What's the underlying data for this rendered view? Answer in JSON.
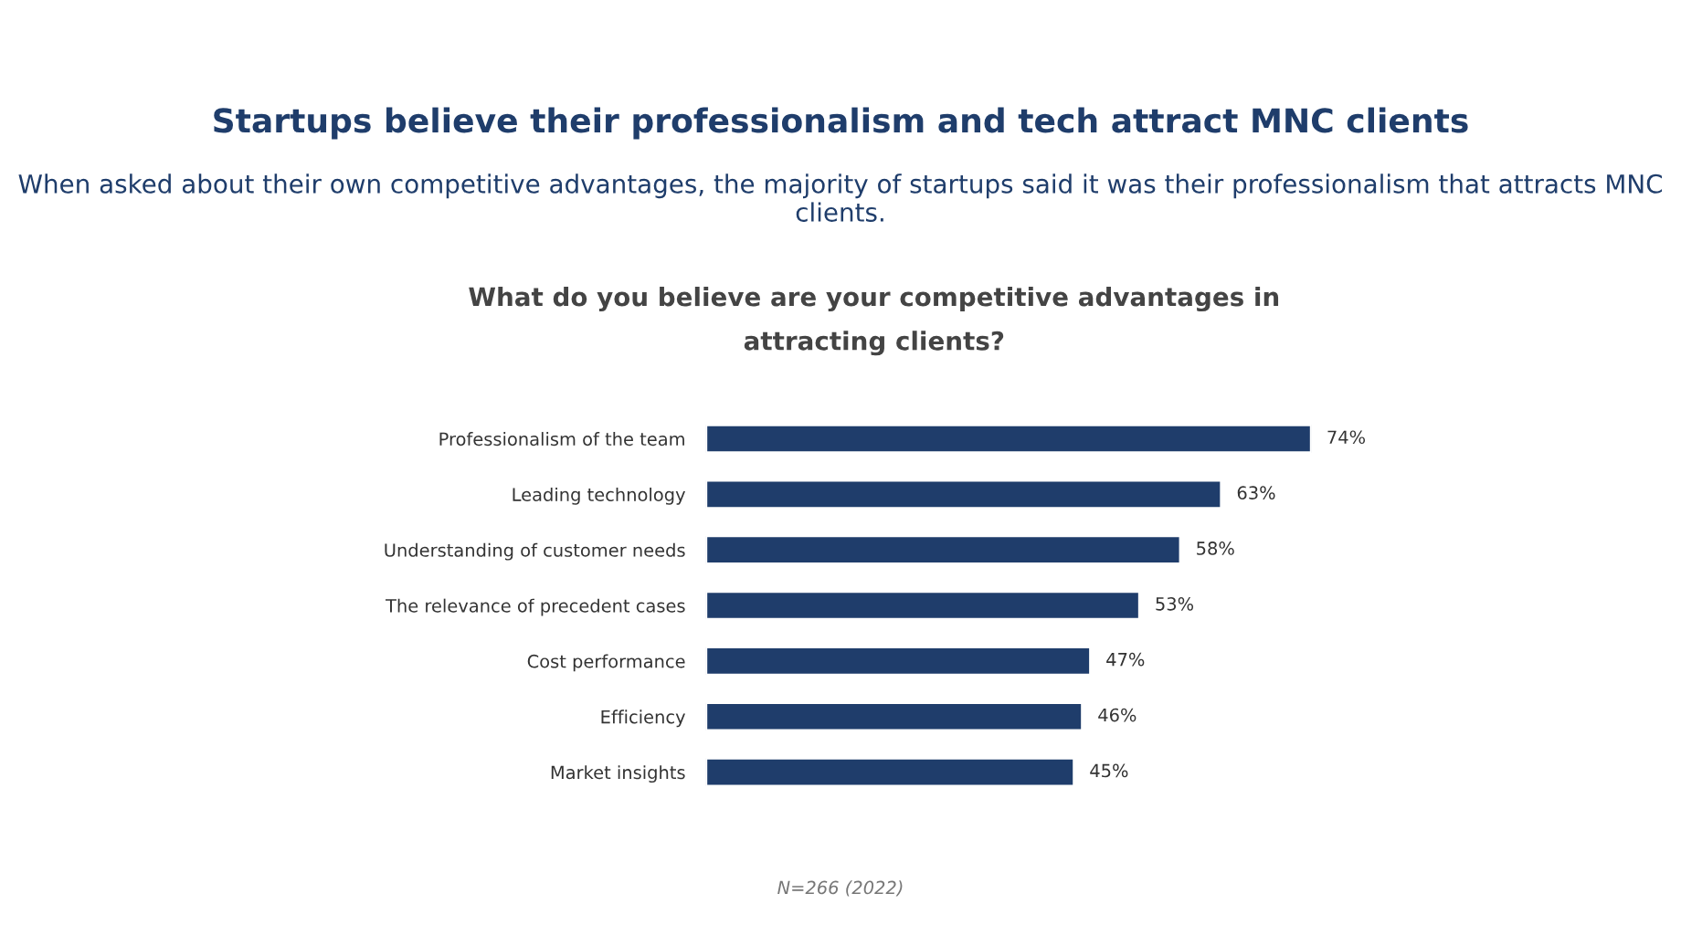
{
  "chart_data": {
    "type": "bar",
    "orientation": "horizontal",
    "title": "Startups believe their professionalism and tech attract MNC clients",
    "subtitle": "When asked about their own competitive advantages, the majority of startups said it was their professionalism that attracts MNC clients.",
    "xlabel": "What do you believe are your competitive advantages in\nattracting clients?",
    "categories": [
      "Professionalism of the team",
      "Leading technology",
      "Understanding of customer needs",
      "The relevance of precedent cases",
      "Cost performance",
      "Efficiency",
      "Market insights"
    ],
    "values": [
      74,
      63,
      58,
      53,
      47,
      46,
      45
    ],
    "value_labels": [
      "74%",
      "63%",
      "58%",
      "53%",
      "47%",
      "46%",
      "45%"
    ],
    "color": "#1f3d6b",
    "annotations": [
      "N=266 (2022)"
    ]
  }
}
